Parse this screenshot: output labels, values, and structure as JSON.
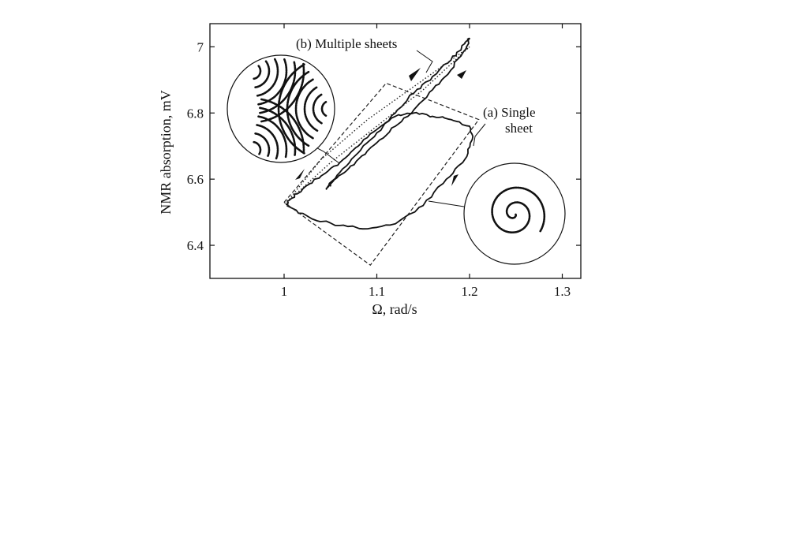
{
  "chart_data": {
    "type": "line",
    "title": "",
    "xlabel": "Ω, rad/s",
    "ylabel": "NMR absorption, mV",
    "xlim": [
      0.92,
      1.32
    ],
    "ylim": [
      6.3,
      7.07
    ],
    "x_ticks": [
      "1",
      "1.1",
      "1.2",
      "1.3"
    ],
    "y_ticks": [
      "6.4",
      "6.6",
      "6.8",
      "7"
    ],
    "grid": false,
    "annotations": {
      "multiple": "(b) Multiple sheets",
      "single_line1": "(a) Single",
      "single_line2": "sheet"
    },
    "series": [
      {
        "style": "solid",
        "x": [
          1.003,
          1.03,
          1.06,
          1.09,
          1.12,
          1.15,
          1.175,
          1.195,
          1.203,
          1.2,
          1.18,
          1.16,
          1.14,
          1.12,
          1.1,
          1.08,
          1.06,
          1.04,
          1.02,
          1.005,
          1.003
        ],
        "y": [
          6.52,
          6.48,
          6.46,
          6.45,
          6.465,
          6.52,
          6.6,
          6.66,
          6.72,
          6.76,
          6.78,
          6.79,
          6.8,
          6.79,
          6.75,
          6.7,
          6.65,
          6.61,
          6.57,
          6.535,
          6.52
        ]
      },
      {
        "style": "solid",
        "x": [
          1.045,
          1.06,
          1.08,
          1.1,
          1.12,
          1.14,
          1.16,
          1.18,
          1.195,
          1.2,
          1.195,
          1.18,
          1.16,
          1.14,
          1.12,
          1.1,
          1.08,
          1.065,
          1.05,
          1.045
        ],
        "y": [
          6.57,
          6.62,
          6.68,
          6.74,
          6.8,
          6.86,
          6.91,
          6.96,
          7.01,
          7.025,
          6.99,
          6.93,
          6.87,
          6.81,
          6.76,
          6.71,
          6.66,
          6.62,
          6.585,
          6.57
        ]
      },
      {
        "style": "dashed",
        "x": [
          1.0,
          1.11,
          1.21,
          1.093,
          1.0
        ],
        "y": [
          6.53,
          6.89,
          6.78,
          6.34,
          6.53
        ]
      },
      {
        "style": "dotted",
        "x": [
          1.003,
          1.05,
          1.1,
          1.15,
          1.2,
          1.19,
          1.14,
          1.09,
          1.04,
          1.003
        ],
        "y": [
          6.53,
          6.65,
          6.76,
          6.87,
          7.0,
          6.98,
          6.88,
          6.78,
          6.66,
          6.53
        ]
      }
    ],
    "insets": [
      "multi-armed wavy pattern",
      "single spiral pattern"
    ]
  }
}
